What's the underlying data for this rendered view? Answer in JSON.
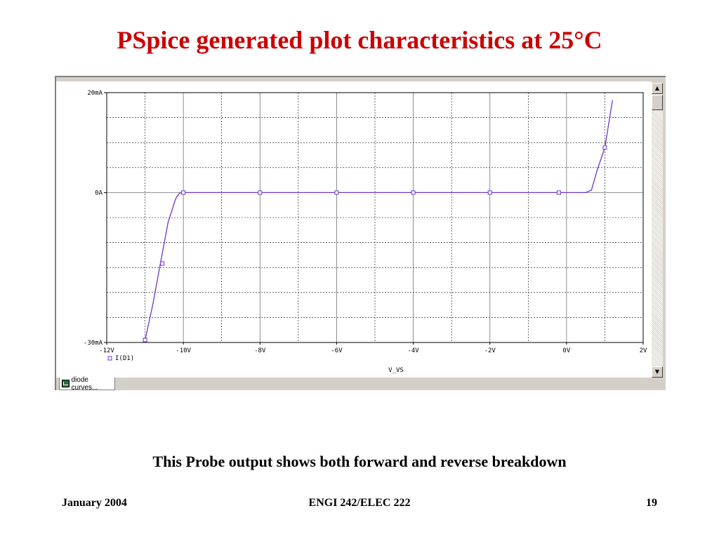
{
  "slide": {
    "title": "PSpice generated plot characteristics at 25°C",
    "caption": "This Probe output shows both forward and reverse breakdown",
    "footer_left": "January 2004",
    "footer_center": "ENGI 242/ELEC 222",
    "footer_right": "19"
  },
  "window": {
    "tab_label": "diode curves..."
  },
  "colors": {
    "title": "#cc0000",
    "trace": "#6a35d6"
  },
  "chart_data": {
    "type": "line",
    "title": "",
    "xlabel": "V_VS",
    "ylabel": "",
    "xlim": [
      -12,
      2
    ],
    "ylim": [
      -30,
      20
    ],
    "xticks": [
      -12,
      -10,
      -8,
      -6,
      -4,
      -2,
      0,
      2
    ],
    "xtick_labels": [
      "-12V",
      "-10V",
      "-8V",
      "-6V",
      "-4V",
      "-2V",
      "0V",
      "2V"
    ],
    "yticks": [
      -30,
      0,
      20
    ],
    "ytick_labels": [
      "-30mA",
      "0A",
      "20mA"
    ],
    "grid": true,
    "legend_position": "bottom-left",
    "series": [
      {
        "name": "I(D1)",
        "marker": "square",
        "x": [
          -11.0,
          -10.8,
          -10.6,
          -10.4,
          -10.2,
          -10.1,
          -10.0,
          -8.0,
          -6.0,
          -4.0,
          -2.0,
          0.0,
          0.5,
          0.65,
          0.8,
          1.0,
          1.2
        ],
        "y": [
          -29.5,
          -22.5,
          -14.2,
          -6.0,
          -1.2,
          -0.1,
          0.0,
          0.0,
          0.0,
          0.0,
          0.0,
          0.0,
          0.0,
          0.5,
          4.5,
          9.0,
          18.5
        ],
        "marker_x": [
          -11.0,
          -10.55,
          -10.0,
          -8.0,
          -6.0,
          -4.0,
          -2.0,
          -0.2,
          1.0
        ],
        "marker_y": [
          -29.5,
          -14.2,
          0.0,
          0.0,
          0.0,
          0.0,
          0.0,
          0.0,
          9.0
        ]
      }
    ]
  }
}
